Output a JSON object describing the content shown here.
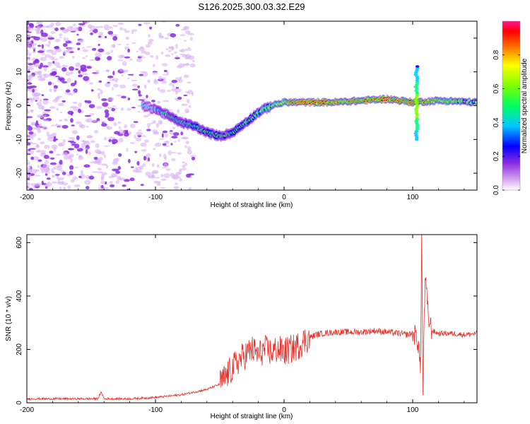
{
  "title": "S126.2025.300.03.32.E29",
  "chart_data": [
    {
      "type": "heatmap",
      "xlabel": "Height of straight line (km)",
      "ylabel": "Frequency (Hz)",
      "xlim": [
        -200,
        150
      ],
      "ylim": [
        -25,
        25
      ],
      "xticks": [
        -200,
        -100,
        0,
        100
      ],
      "yticks": [
        -20,
        -10,
        0,
        10,
        20
      ],
      "colorbar": {
        "label": "Normalized spectral amplitude",
        "ticks": [
          0.0,
          0.2,
          0.4,
          0.6,
          0.8
        ],
        "colors": [
          "#e0b0f0",
          "#8a2be2",
          "#0000ff",
          "#00c8ff",
          "#00ff80",
          "#80ff00",
          "#ffff00",
          "#ff8000",
          "#ff0000",
          "#ff1090"
        ]
      },
      "ridge": {
        "x": [
          -110,
          -100,
          -90,
          -80,
          -70,
          -60,
          -50,
          -40,
          -30,
          -20,
          -10,
          0,
          10,
          20,
          40,
          60,
          80,
          100,
          120,
          150
        ],
        "freq": [
          0,
          -1,
          -3,
          -5,
          -6,
          -8,
          -9,
          -8,
          -5,
          -2,
          0,
          1,
          1,
          1,
          1,
          1.5,
          2,
          1,
          1.5,
          1
        ],
        "amplitude": [
          0.3,
          0.35,
          0.45,
          0.45,
          0.5,
          0.55,
          0.5,
          0.5,
          0.55,
          0.6,
          0.7,
          0.8,
          0.9,
          0.9,
          0.85,
          0.85,
          0.9,
          0.9,
          0.75,
          0.65
        ]
      }
    },
    {
      "type": "line",
      "xlabel": "Height of straight line (km)",
      "ylabel": "SNR (10 * v/v)",
      "xlim": [
        -200,
        150
      ],
      "ylim": [
        0,
        630
      ],
      "xticks": [
        -200,
        -100,
        0,
        100
      ],
      "yticks": [
        0,
        200,
        400,
        600
      ],
      "series": [
        {
          "name": "SNR",
          "color": "#e8302a",
          "x": [
            -200,
            -180,
            -160,
            -145,
            -142,
            -140,
            -120,
            -100,
            -90,
            -80,
            -70,
            -60,
            -50,
            -45,
            -40,
            -35,
            -30,
            -25,
            -20,
            -15,
            -10,
            -5,
            0,
            5,
            10,
            15,
            20,
            25,
            30,
            40,
            50,
            60,
            70,
            80,
            90,
            95,
            100,
            103,
            105,
            106,
            107,
            108,
            109,
            110,
            112,
            115,
            120,
            130,
            140,
            150
          ],
          "y": [
            15,
            15,
            15,
            15,
            40,
            15,
            15,
            20,
            25,
            30,
            40,
            50,
            70,
            100,
            130,
            160,
            180,
            200,
            180,
            200,
            190,
            200,
            190,
            200,
            210,
            230,
            245,
            255,
            260,
            265,
            265,
            265,
            270,
            265,
            260,
            255,
            260,
            250,
            200,
            100,
            630,
            40,
            350,
            470,
            320,
            270,
            260,
            260,
            255,
            260
          ]
        }
      ]
    }
  ]
}
